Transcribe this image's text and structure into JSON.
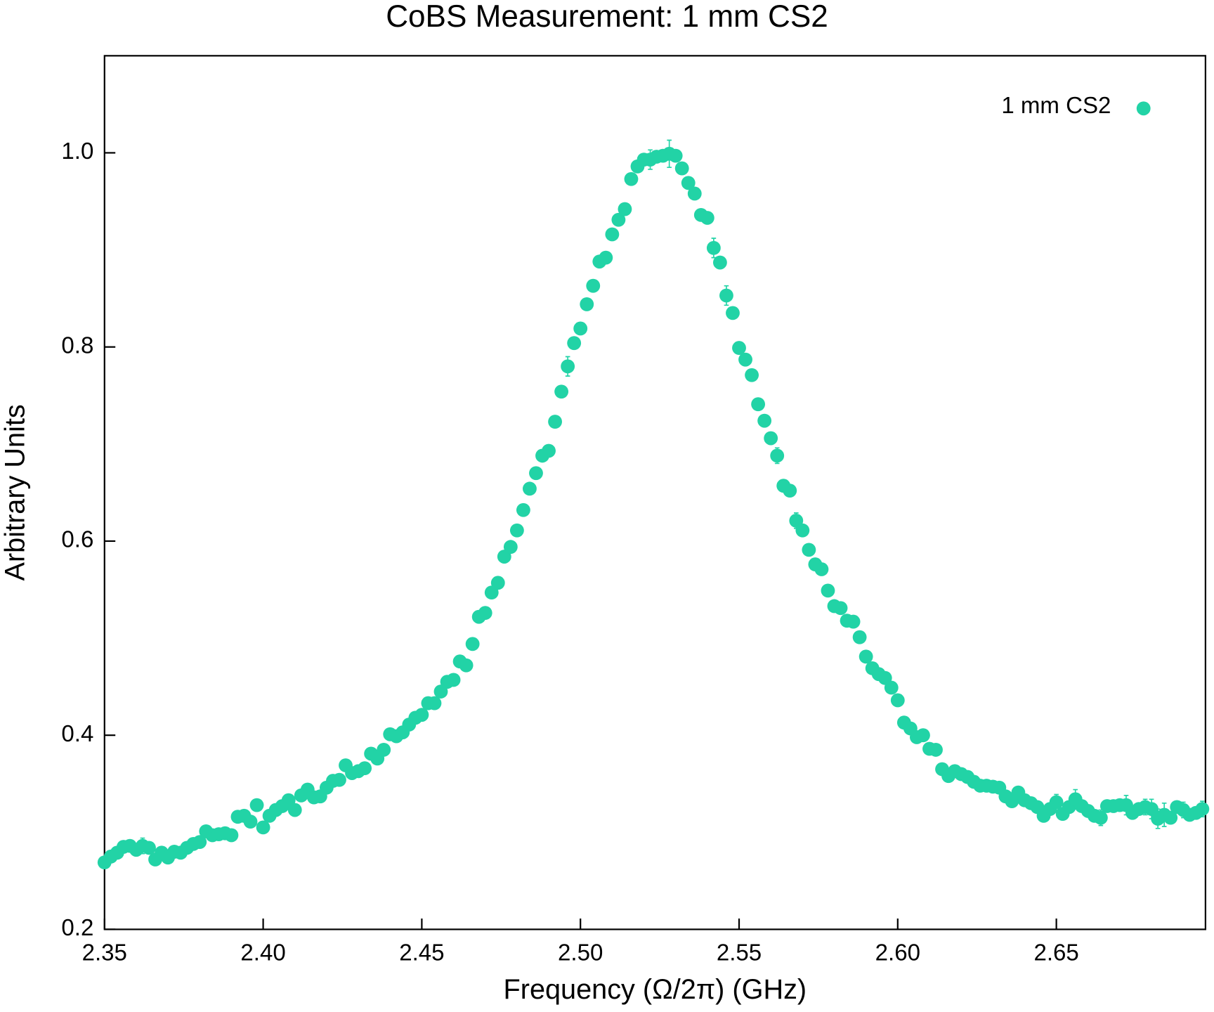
{
  "chart_data": {
    "type": "scatter",
    "title": "CoBS Measurement: 1 mm CS2",
    "xlabel": "Frequency (Ω/2π) (GHz)",
    "ylabel": "Arbitrary Units",
    "xlim": [
      2.35,
      2.697
    ],
    "ylim": [
      0.2,
      1.1
    ],
    "xticks": [
      2.35,
      {
        "value": 2.4,
        "label": "2.40"
      },
      2.45,
      {
        "value": 2.5,
        "label": "2.50"
      },
      2.55,
      {
        "value": 2.6,
        "label": "2.60"
      },
      2.65
    ],
    "yticks": [
      0.2,
      0.4,
      0.6,
      0.8,
      {
        "value": 1.0,
        "label": "1.0"
      }
    ],
    "legend": "upper right",
    "x": [
      2.35,
      2.352,
      2.354,
      2.356,
      2.358,
      2.36,
      2.362,
      2.364,
      2.366,
      2.368,
      2.37,
      2.372,
      2.374,
      2.376,
      2.378,
      2.38,
      2.382,
      2.384,
      2.386,
      2.388,
      2.39,
      2.392,
      2.394,
      2.396,
      2.398,
      2.4,
      2.402,
      2.404,
      2.406,
      2.408,
      2.41,
      2.412,
      2.414,
      2.416,
      2.418,
      2.42,
      2.422,
      2.424,
      2.426,
      2.428,
      2.43,
      2.432,
      2.434,
      2.436,
      2.438,
      2.44,
      2.442,
      2.444,
      2.446,
      2.448,
      2.45,
      2.452,
      2.454,
      2.456,
      2.458,
      2.46,
      2.462,
      2.464,
      2.466,
      2.468,
      2.47,
      2.472,
      2.474,
      2.476,
      2.478,
      2.48,
      2.482,
      2.484,
      2.486,
      2.488,
      2.49,
      2.492,
      2.494,
      2.496,
      2.498,
      2.5,
      2.502,
      2.504,
      2.506,
      2.508,
      2.51,
      2.512,
      2.514,
      2.516,
      2.518,
      2.52,
      2.522,
      2.524,
      2.526,
      2.528,
      2.53,
      2.532,
      2.534,
      2.536,
      2.538,
      2.54,
      2.542,
      2.544,
      2.546,
      2.548,
      2.55,
      2.552,
      2.554,
      2.556,
      2.558,
      2.56,
      2.562,
      2.564,
      2.566,
      2.568,
      2.57,
      2.572,
      2.574,
      2.576,
      2.578,
      2.58,
      2.582,
      2.584,
      2.586,
      2.588,
      2.59,
      2.592,
      2.594,
      2.596,
      2.598,
      2.6,
      2.602,
      2.604,
      2.606,
      2.608,
      2.61,
      2.612,
      2.614,
      2.616,
      2.618,
      2.62,
      2.622,
      2.624,
      2.626,
      2.628,
      2.63,
      2.632,
      2.634,
      2.636,
      2.638,
      2.64,
      2.642,
      2.644,
      2.646,
      2.648,
      2.65,
      2.652,
      2.654,
      2.656,
      2.658,
      2.66,
      2.662,
      2.664,
      2.666,
      2.668,
      2.67,
      2.672,
      2.674,
      2.676,
      2.678,
      2.68,
      2.682,
      2.684,
      2.686,
      2.688,
      2.69,
      2.692,
      2.694,
      2.696
    ],
    "series": [
      {
        "name": "1 mm CS2",
        "color": "#22d3a6",
        "values": [
          0.269,
          0.275,
          0.279,
          0.285,
          0.286,
          0.282,
          0.286,
          0.284,
          0.272,
          0.279,
          0.274,
          0.28,
          0.279,
          0.284,
          0.288,
          0.29,
          0.301,
          0.297,
          0.298,
          0.299,
          0.297,
          0.316,
          0.317,
          0.311,
          0.328,
          0.305,
          0.317,
          0.323,
          0.327,
          0.333,
          0.323,
          0.338,
          0.344,
          0.336,
          0.337,
          0.346,
          0.353,
          0.354,
          0.369,
          0.361,
          0.363,
          0.366,
          0.381,
          0.376,
          0.385,
          0.401,
          0.399,
          0.403,
          0.411,
          0.418,
          0.421,
          0.433,
          0.433,
          0.445,
          0.455,
          0.457,
          0.476,
          0.472,
          0.494,
          0.522,
          0.526,
          0.547,
          0.557,
          0.584,
          0.594,
          0.611,
          0.632,
          0.654,
          0.67,
          0.688,
          0.693,
          0.723,
          0.754,
          0.78,
          0.804,
          0.819,
          0.844,
          0.863,
          0.888,
          0.892,
          0.916,
          0.931,
          0.942,
          0.973,
          0.986,
          0.993,
          0.993,
          0.996,
          0.997,
          0.999,
          0.997,
          0.984,
          0.969,
          0.958,
          0.936,
          0.933,
          0.902,
          0.887,
          0.853,
          0.835,
          0.799,
          0.787,
          0.771,
          0.741,
          0.724,
          0.706,
          0.688,
          0.657,
          0.652,
          0.621,
          0.611,
          0.591,
          0.576,
          0.571,
          0.549,
          0.533,
          0.531,
          0.518,
          0.517,
          0.501,
          0.481,
          0.469,
          0.463,
          0.459,
          0.449,
          0.436,
          0.413,
          0.407,
          0.398,
          0.4,
          0.386,
          0.385,
          0.365,
          0.358,
          0.363,
          0.36,
          0.357,
          0.352,
          0.348,
          0.348,
          0.347,
          0.346,
          0.337,
          0.332,
          0.341,
          0.333,
          0.33,
          0.326,
          0.317,
          0.324,
          0.331,
          0.319,
          0.326,
          0.334,
          0.327,
          0.322,
          0.317,
          0.315,
          0.327,
          0.327,
          0.328,
          0.328,
          0.32,
          0.324,
          0.326,
          0.324,
          0.314,
          0.318,
          0.315,
          0.326,
          0.323,
          0.318,
          0.32,
          0.324
        ],
        "errors": [
          0.004,
          0.004,
          0.004,
          0.006,
          0.004,
          0.004,
          0.008,
          0.004,
          0.004,
          0.004,
          0.004,
          0.004,
          0.004,
          0.004,
          0.004,
          0.004,
          0.004,
          0.004,
          0.004,
          0.004,
          0.004,
          0.004,
          0.004,
          0.004,
          0.004,
          0.004,
          0.004,
          0.004,
          0.004,
          0.004,
          0.004,
          0.004,
          0.004,
          0.004,
          0.004,
          0.004,
          0.004,
          0.004,
          0.004,
          0.004,
          0.004,
          0.004,
          0.004,
          0.004,
          0.004,
          0.004,
          0.004,
          0.004,
          0.004,
          0.004,
          0.004,
          0.004,
          0.004,
          0.004,
          0.004,
          0.004,
          0.004,
          0.004,
          0.004,
          0.004,
          0.004,
          0.004,
          0.004,
          0.004,
          0.004,
          0.004,
          0.004,
          0.004,
          0.004,
          0.004,
          0.004,
          0.004,
          0.004,
          0.01,
          0.004,
          0.004,
          0.004,
          0.004,
          0.004,
          0.004,
          0.004,
          0.004,
          0.004,
          0.004,
          0.004,
          0.004,
          0.01,
          0.004,
          0.004,
          0.014,
          0.006,
          0.004,
          0.004,
          0.006,
          0.004,
          0.004,
          0.01,
          0.004,
          0.01,
          0.006,
          0.006,
          0.004,
          0.006,
          0.004,
          0.004,
          0.006,
          0.008,
          0.004,
          0.004,
          0.008,
          0.006,
          0.004,
          0.004,
          0.006,
          0.006,
          0.004,
          0.004,
          0.004,
          0.006,
          0.004,
          0.006,
          0.004,
          0.004,
          0.004,
          0.004,
          0.006,
          0.004,
          0.004,
          0.004,
          0.004,
          0.004,
          0.004,
          0.004,
          0.004,
          0.004,
          0.004,
          0.004,
          0.004,
          0.004,
          0.004,
          0.004,
          0.006,
          0.004,
          0.004,
          0.006,
          0.004,
          0.004,
          0.004,
          0.004,
          0.004,
          0.008,
          0.006,
          0.006,
          0.01,
          0.006,
          0.006,
          0.006,
          0.008,
          0.006,
          0.006,
          0.006,
          0.01,
          0.006,
          0.006,
          0.008,
          0.01,
          0.01,
          0.012,
          0.006,
          0.006,
          0.008,
          0.006,
          0.006,
          0.008
        ]
      }
    ]
  }
}
